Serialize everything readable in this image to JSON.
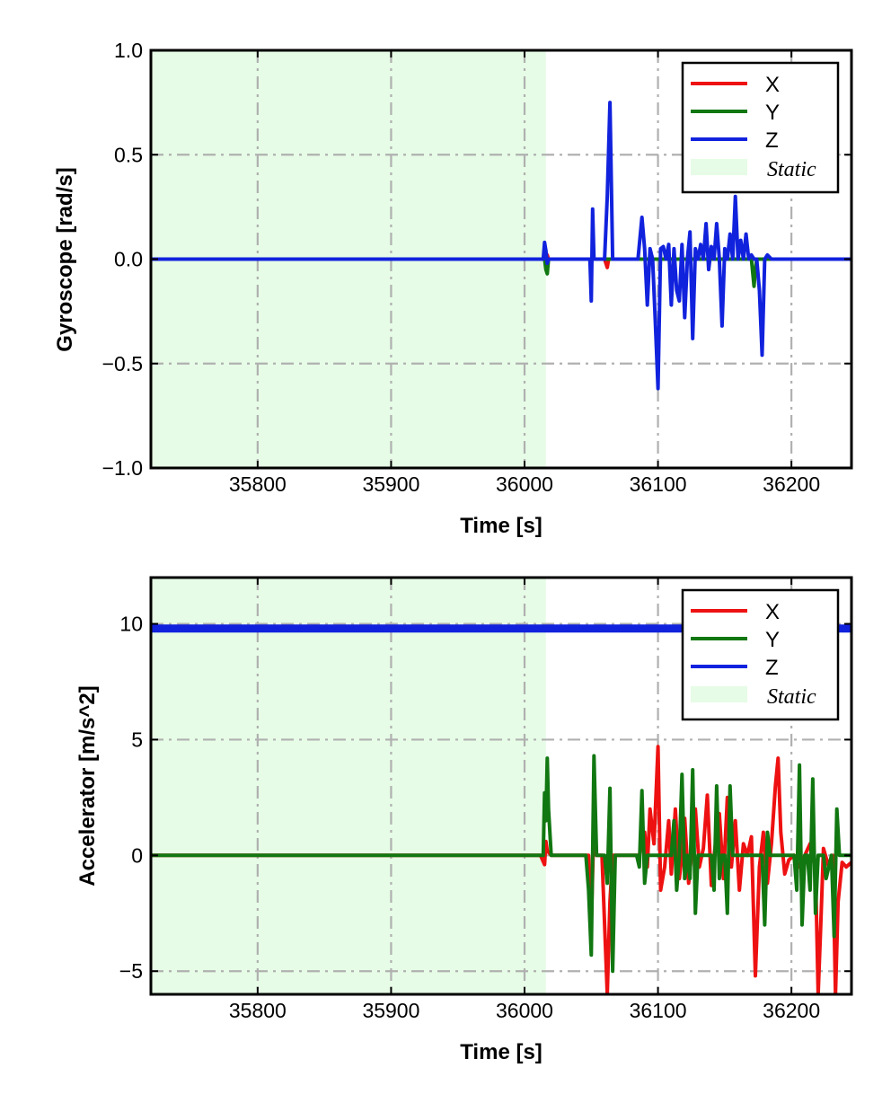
{
  "colors": {
    "x": "#ee1111",
    "y": "#117711",
    "z": "#1122dd",
    "static": "#e6fce6",
    "grid": "#b0b0b0"
  },
  "chart_data": [
    {
      "type": "line",
      "xlabel": "Time [s]",
      "ylabel": "Gyroscope [rad/s]",
      "xlim": [
        35720,
        36245
      ],
      "ylim": [
        -1.0,
        1.0
      ],
      "xticks": [
        35800,
        35900,
        36000,
        36100,
        36200
      ],
      "yticks": [
        -1.0,
        -0.5,
        0.0,
        0.5,
        1.0
      ],
      "ytick_labels": [
        "−1.0",
        "−0.5",
        "0.0",
        "0.5",
        "1.0"
      ],
      "grid": true,
      "legend_position": "top-right",
      "legend": [
        "X",
        "Y",
        "Z",
        "Static"
      ],
      "static_region": [
        35720,
        36016
      ],
      "series": [
        {
          "name": "X",
          "x": [
            35720,
            36014,
            36015,
            36016,
            36017,
            36018,
            36060,
            36062,
            36063,
            36064,
            36245
          ],
          "y": [
            0.0,
            0.0,
            0.04,
            -0.04,
            0.02,
            0.0,
            0.0,
            -0.04,
            0.0,
            0.0,
            0.0
          ]
        },
        {
          "name": "Y",
          "x": [
            35720,
            36015,
            36016,
            36017,
            36018,
            36019,
            36170,
            36172,
            36173,
            36174,
            36175,
            36245
          ],
          "y": [
            0.0,
            0.0,
            -0.05,
            -0.07,
            0.0,
            0.0,
            0.0,
            -0.13,
            -0.05,
            0.0,
            0.0,
            0.0
          ]
        },
        {
          "name": "Z",
          "x": [
            35720,
            36014,
            36015,
            36016,
            36017,
            36018,
            36049,
            36050,
            36051,
            36052,
            36055,
            36060,
            36062,
            36064,
            36066,
            36070,
            36085,
            36088,
            36090,
            36092,
            36094,
            36096,
            36098,
            36100,
            36102,
            36104,
            36106,
            36108,
            36110,
            36112,
            36114,
            36116,
            36118,
            36120,
            36122,
            36124,
            36126,
            36128,
            36130,
            36132,
            36134,
            36136,
            36138,
            36140,
            36142,
            36144,
            36146,
            36148,
            36150,
            36152,
            36154,
            36156,
            36158,
            36160,
            36162,
            36164,
            36166,
            36168,
            36170,
            36172,
            36174,
            36176,
            36178,
            36180,
            36182,
            36185,
            36188,
            36190,
            36192,
            36194,
            36196,
            36198,
            36200,
            36202,
            36210,
            36216,
            36218,
            36220,
            36222,
            36224,
            36226,
            36228,
            36230,
            36232,
            36234,
            36236,
            36238,
            36240,
            36242,
            36244
          ],
          "y": [
            0.0,
            0.0,
            0.08,
            0.04,
            -0.02,
            0.0,
            0.0,
            -0.2,
            0.24,
            0.0,
            0.0,
            0.0,
            0.3,
            0.75,
            0.0,
            0.0,
            0.0,
            0.2,
            0.05,
            -0.22,
            0.05,
            0.0,
            -0.3,
            -0.62,
            0.05,
            0.06,
            0.0,
            0.07,
            -0.22,
            0.05,
            -0.15,
            -0.2,
            0.07,
            -0.28,
            0.0,
            0.13,
            -0.38,
            0.05,
            0.0,
            0.07,
            0.0,
            0.17,
            -0.05,
            0.06,
            0.0,
            0.17,
            0.0,
            -0.32,
            0.05,
            0.0,
            0.12,
            0.0,
            0.3,
            0.0,
            0.09,
            0.0,
            0.12,
            0.0,
            0.02,
            0.0,
            0.0,
            -0.15,
            -0.46,
            0.0,
            0.02,
            0.0,
            0.0,
            0.0,
            0.0,
            0.0,
            0.0,
            0.0,
            0.0,
            0.0,
            0.0,
            0.0,
            0.0,
            0.0,
            0.0,
            0.0,
            0.0,
            0.0,
            0.0,
            0.0,
            0.0,
            0.0,
            0.0,
            0.0,
            0.0,
            0.0
          ]
        }
      ]
    },
    {
      "type": "line",
      "xlabel": "Time [s]",
      "ylabel": "Accelerator [m/s^2]",
      "xlim": [
        35720,
        36245
      ],
      "ylim": [
        -6,
        12
      ],
      "xticks": [
        35800,
        35900,
        36000,
        36100,
        36200
      ],
      "yticks": [
        -5,
        0,
        5,
        10
      ],
      "ytick_labels": [
        "−5",
        "0",
        "5",
        "10"
      ],
      "grid": true,
      "legend_position": "top-right",
      "legend": [
        "X",
        "Y",
        "Z",
        "Static"
      ],
      "static_region": [
        35720,
        36016
      ],
      "series": [
        {
          "name": "X",
          "x": [
            35720,
            36012,
            36015,
            36016,
            36017,
            36020,
            36048,
            36050,
            36052,
            36054,
            36058,
            36062,
            36064,
            36066,
            36070,
            36086,
            36090,
            36092,
            36094,
            36097,
            36100,
            36102,
            36105,
            36108,
            36110,
            36113,
            36116,
            36118,
            36120,
            36123,
            36126,
            36128,
            36131,
            36134,
            36137,
            36140,
            36143,
            36146,
            36149,
            36152,
            36155,
            36158,
            36161,
            36164,
            36167,
            36170,
            36173,
            36176,
            36179,
            36182,
            36185,
            36188,
            36190,
            36192,
            36195,
            36198,
            36202,
            36206,
            36210,
            36214,
            36218,
            36220,
            36222,
            36224,
            36228,
            36231,
            36233,
            36235,
            36238,
            36241,
            36245
          ],
          "y": [
            0.0,
            0.0,
            -0.4,
            0.6,
            0.2,
            0.0,
            0.0,
            -3.0,
            1.5,
            0.0,
            0.0,
            -6.0,
            -2.0,
            0.0,
            0.0,
            0.0,
            1.0,
            -0.5,
            2.0,
            0.5,
            4.7,
            -1.5,
            -0.5,
            1.5,
            -0.8,
            2.0,
            -1.0,
            0.0,
            1.6,
            -1.2,
            0.5,
            2.0,
            -0.5,
            0.3,
            2.6,
            -1.3,
            0.5,
            1.8,
            -1.0,
            2.5,
            -0.5,
            1.5,
            -1.5,
            0.5,
            0.0,
            0.8,
            -5.2,
            -0.5,
            1.0,
            -1.2,
            0.5,
            3.0,
            4.2,
            1.0,
            -0.8,
            -0.2,
            0.0,
            -0.5,
            0.0,
            0.5,
            -0.5,
            -6.0,
            -3.0,
            0.3,
            -0.5,
            0.0,
            -6.0,
            -2.0,
            -0.3,
            -0.5,
            -0.3
          ]
        },
        {
          "name": "Y",
          "x": [
            35720,
            36014,
            36015,
            36016,
            36017,
            36018,
            36020,
            36046,
            36048,
            36050,
            36052,
            36054,
            36060,
            36062,
            36064,
            36066,
            36068,
            36084,
            36086,
            36088,
            36090,
            36092,
            36094,
            36110,
            36112,
            36114,
            36116,
            36118,
            36120,
            36122,
            36124,
            36126,
            36128,
            36130,
            36132,
            36134,
            36140,
            36142,
            36144,
            36146,
            36148,
            36150,
            36152,
            36154,
            36156,
            36160,
            36168,
            36172,
            36174,
            36176,
            36178,
            36180,
            36182,
            36184,
            36190,
            36196,
            36198,
            36200,
            36202,
            36204,
            36206,
            36208,
            36210,
            36212,
            36214,
            36216,
            36218,
            36220,
            36222,
            36224,
            36226,
            36230,
            36232,
            36234,
            36236,
            36238,
            36245
          ],
          "y": [
            0.0,
            0.0,
            2.7,
            1.5,
            4.2,
            2.0,
            0.0,
            0.0,
            -1.5,
            -4.3,
            4.3,
            0.0,
            0.0,
            -1.2,
            2.9,
            -5.0,
            0.0,
            0.0,
            -0.5,
            2.8,
            -1.2,
            0.0,
            0.0,
            0.0,
            1.5,
            -1.5,
            0.0,
            3.5,
            -1.0,
            0.0,
            -1.0,
            3.7,
            -2.5,
            0.0,
            0.0,
            0.0,
            0.0,
            -1.5,
            3.0,
            -1.0,
            0.0,
            0.0,
            -2.5,
            3.0,
            0.0,
            0.0,
            0.0,
            0.0,
            0.0,
            0.0,
            0.0,
            -3.0,
            1.0,
            0.0,
            0.0,
            0.0,
            0.0,
            0.0,
            0.0,
            -1.5,
            3.9,
            -3.0,
            0.0,
            0.0,
            -1.5,
            3.3,
            -2.5,
            0.0,
            0.0,
            0.0,
            -1.0,
            0.0,
            -3.5,
            2.0,
            0.0,
            0.0,
            0.0
          ]
        },
        {
          "name": "Z",
          "x": [
            35720,
            35780,
            35840,
            35900,
            35960,
            36020,
            36060,
            36100,
            36140,
            36180,
            36220,
            36245
          ],
          "y": [
            9.8,
            9.8,
            9.8,
            9.8,
            9.8,
            9.8,
            9.8,
            9.8,
            9.8,
            9.8,
            9.8,
            9.8
          ]
        }
      ]
    }
  ]
}
